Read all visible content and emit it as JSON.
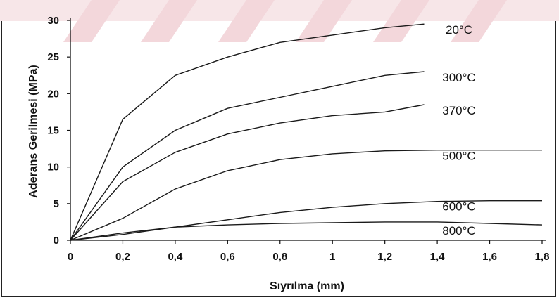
{
  "chart_data": {
    "type": "line",
    "title": "",
    "xlabel": "Sıyrılma (mm)",
    "ylabel": "Aderans Gerilmesi (MPa)",
    "xlim": [
      0,
      1.8
    ],
    "ylim": [
      0,
      30
    ],
    "x_ticks": [
      "0",
      "0,2",
      "0,4",
      "0,6",
      "0,8",
      "1",
      "1,2",
      "1,4",
      "1,6",
      "1,8"
    ],
    "y_ticks": [
      "0",
      "5",
      "10",
      "15",
      "20",
      "25",
      "30"
    ],
    "grid": false,
    "legend": "inline labels at right",
    "series": [
      {
        "name": "20°C",
        "x": [
          0,
          0.2,
          0.4,
          0.6,
          0.8,
          1.0,
          1.2,
          1.35
        ],
        "y": [
          0,
          16.5,
          22.5,
          25,
          27,
          28,
          29,
          29.5
        ]
      },
      {
        "name": "300°C",
        "x": [
          0,
          0.2,
          0.4,
          0.6,
          0.8,
          1.0,
          1.2,
          1.35
        ],
        "y": [
          0,
          10,
          15,
          18,
          19.5,
          21,
          22.5,
          23
        ]
      },
      {
        "name": "370°C",
        "x": [
          0,
          0.2,
          0.4,
          0.6,
          0.8,
          1.0,
          1.2,
          1.35
        ],
        "y": [
          0,
          8,
          12,
          14.5,
          16,
          17,
          17.5,
          18.5
        ]
      },
      {
        "name": "500°C",
        "x": [
          0,
          0.2,
          0.4,
          0.6,
          0.8,
          1.0,
          1.2,
          1.4,
          1.6,
          1.8
        ],
        "y": [
          0,
          3,
          7,
          9.5,
          11,
          11.8,
          12.2,
          12.3,
          12.3,
          12.3
        ]
      },
      {
        "name": "600°C",
        "x": [
          0,
          0.2,
          0.4,
          0.6,
          0.8,
          1.0,
          1.2,
          1.4,
          1.6,
          1.8
        ],
        "y": [
          0,
          0.8,
          1.8,
          2.8,
          3.8,
          4.5,
          5,
          5.3,
          5.4,
          5.4
        ]
      },
      {
        "name": "800°C",
        "x": [
          0,
          0.2,
          0.4,
          0.6,
          0.8,
          1.0,
          1.2,
          1.4,
          1.6,
          1.8
        ],
        "y": [
          0,
          1.0,
          1.8,
          2.1,
          2.3,
          2.4,
          2.5,
          2.5,
          2.3,
          2.1
        ]
      }
    ]
  }
}
